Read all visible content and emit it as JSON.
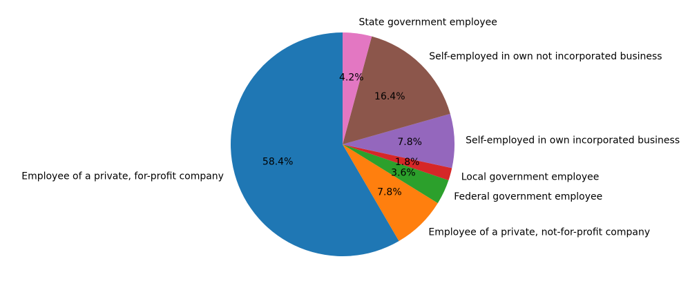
{
  "chart_data": {
    "type": "pie",
    "title": "",
    "start_angle_deg": 90,
    "direction": "counterclockwise",
    "labels": [
      "Employee of a private, for-profit company",
      "Employee of a private, not-for-profit company",
      "Federal government employee",
      "Local government employee",
      "Self-employed in own incorporated business",
      "Self-employed in own not incorporated business",
      "State government employee"
    ],
    "values": [
      58.4,
      7.8,
      3.6,
      1.8,
      7.8,
      16.4,
      4.2
    ],
    "pct_labels": [
      "58.4%",
      "7.8%",
      "3.6%",
      "1.8%",
      "7.8%",
      "16.4%",
      "4.2%"
    ],
    "colors": [
      "#1f77b4",
      "#ff7f0e",
      "#2ca02c",
      "#d62728",
      "#9467bd",
      "#8c564b",
      "#e377c2"
    ]
  }
}
